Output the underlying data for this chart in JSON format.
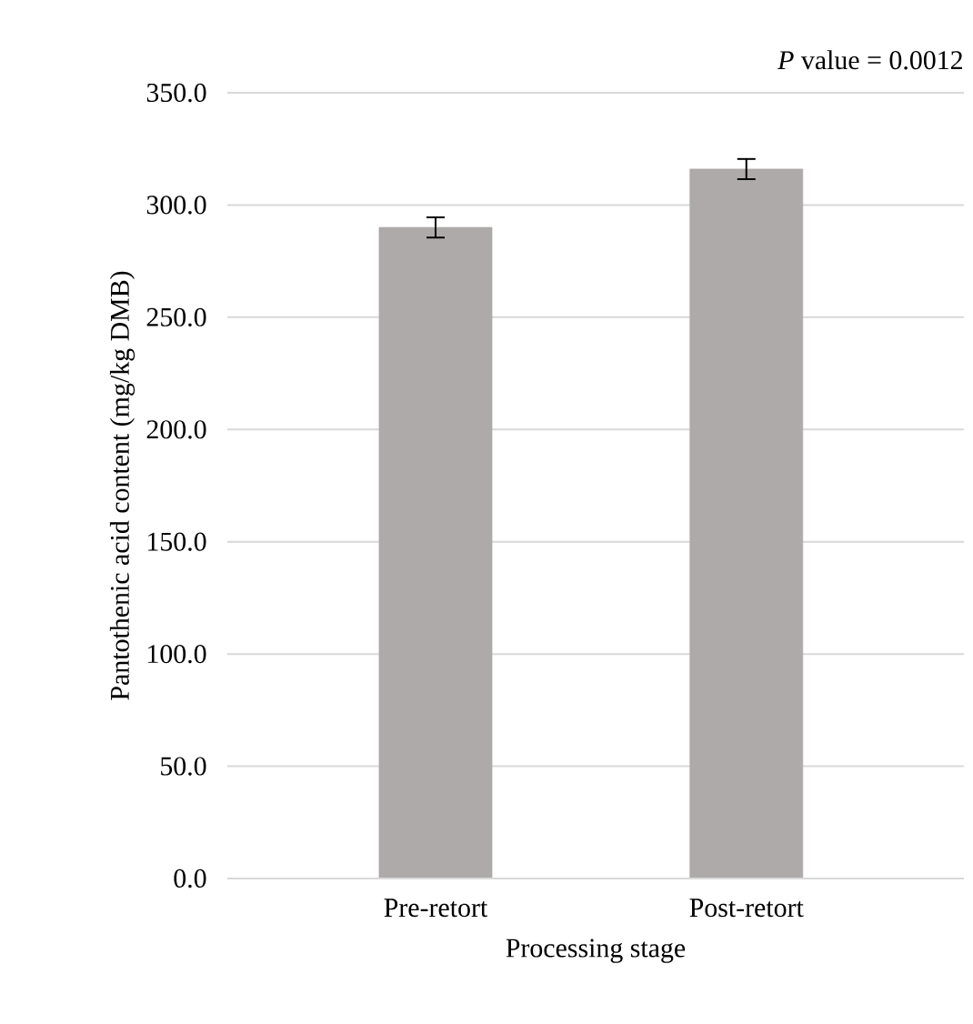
{
  "chart_data": {
    "type": "bar",
    "categories": [
      "Pre-retort",
      "Post-retort"
    ],
    "values": [
      290,
      316
    ],
    "errors": [
      4.5,
      4.5
    ],
    "color": "#aeaaaa",
    "xlabel": "Processing stage",
    "ylabel": "Pantothenic acid content (mg/kg DMB)",
    "ylim": [
      0,
      350
    ],
    "yticks": [
      {
        "value": 0,
        "label": "0.0"
      },
      {
        "value": 50,
        "label": "50.0"
      },
      {
        "value": 100,
        "label": "100.0"
      },
      {
        "value": 150,
        "label": "150.0"
      },
      {
        "value": 200,
        "label": "200.0"
      },
      {
        "value": 250,
        "label": "250.0"
      },
      {
        "value": 300,
        "label": "300.0"
      },
      {
        "value": 350,
        "label": "350.0"
      }
    ],
    "grid": "y",
    "annotations": [
      "*P* value = 0.0012"
    ]
  }
}
